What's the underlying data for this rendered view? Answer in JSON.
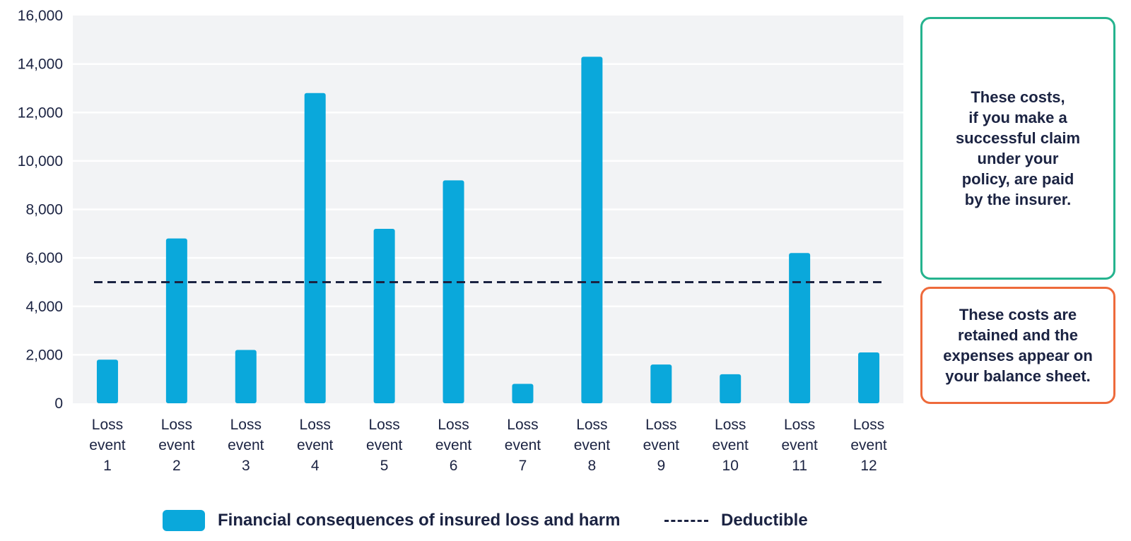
{
  "chart_data": {
    "type": "bar",
    "categories": [
      [
        "Loss",
        "event",
        "1"
      ],
      [
        "Loss",
        "event",
        "2"
      ],
      [
        "Loss",
        "event",
        "3"
      ],
      [
        "Loss",
        "event",
        "4"
      ],
      [
        "Loss",
        "event",
        "5"
      ],
      [
        "Loss",
        "event",
        "6"
      ],
      [
        "Loss",
        "event",
        "7"
      ],
      [
        "Loss",
        "event",
        "8"
      ],
      [
        "Loss",
        "event",
        "9"
      ],
      [
        "Loss",
        "event",
        "10"
      ],
      [
        "Loss",
        "event",
        "11"
      ],
      [
        "Loss",
        "event",
        "12"
      ]
    ],
    "series": [
      {
        "name": "Financial consequences of insured loss and harm",
        "values": [
          1800,
          6800,
          2200,
          12800,
          7200,
          9200,
          800,
          14300,
          1600,
          1200,
          6200,
          2100
        ],
        "color": "#0aa8db"
      }
    ],
    "reference_line": {
      "name": "Deductible",
      "value": 5000,
      "style": "dashed",
      "color": "#1b2342"
    },
    "ylim": [
      0,
      16000
    ],
    "y_ticks": [
      "0",
      "2,000",
      "4,000",
      "6,000",
      "8,000",
      "10,000",
      "12,000",
      "14,000",
      "16,000"
    ],
    "grid": true,
    "legend_position": "bottom"
  },
  "annotations": {
    "above_deductible": "These costs,\nif you make a\nsuccessful claim\nunder your\npolicy, are paid\nby the insurer.",
    "below_deductible": "These costs are\nretained and the\nexpenses appear on\nyour balance sheet.",
    "above_color": "#25b38e",
    "below_color": "#ee6a3b"
  },
  "legend": {
    "bars_label": "Financial consequences of insured loss and harm",
    "deductible_label": "Deductible"
  }
}
